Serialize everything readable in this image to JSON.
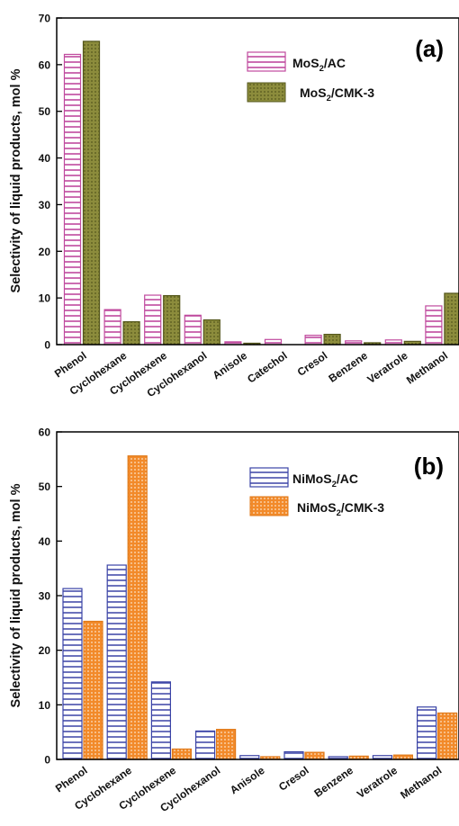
{
  "colors": {
    "mos2_ac": "#c04a9e",
    "mos2_cmk3": "#8c8c3c",
    "mos2_cmk3_dot": "#55571c",
    "nimos2_ac": "#3a43a6",
    "nimos2_cmk3": "#f28a2a",
    "nimos2_cmk3_dot": "#fbe2c6"
  },
  "chart_data": [
    {
      "type": "bar",
      "panel_label": "(a)",
      "ylabel": "Selectivity of liquid products, mol %",
      "ylim": [
        0,
        70
      ],
      "yticks": [
        "0",
        "10",
        "20",
        "30",
        "40",
        "50",
        "60",
        "70"
      ],
      "legend_position": "top-right",
      "categories": [
        "Phenol",
        "Cyclohexane",
        "Cyclohexene",
        "Cyclohexanol",
        "Anisole",
        "Catechol",
        "Cresol",
        "Benzene",
        "Veratrole",
        "Methanol"
      ],
      "series": [
        {
          "legend_main": "MoS",
          "legend_sub": "2",
          "legend_rest": "/AC",
          "pattern": "hlines-magenta",
          "values": [
            62.2,
            7.5,
            10.6,
            6.3,
            0.6,
            1.1,
            2.0,
            0.8,
            1.0,
            8.3
          ]
        },
        {
          "legend_main": "MoS",
          "legend_sub": "2",
          "legend_rest": "/CMK-3",
          "pattern": "dots-olive",
          "values": [
            65.0,
            4.9,
            10.5,
            5.3,
            0.3,
            0.0,
            2.2,
            0.4,
            0.7,
            11.0
          ]
        }
      ]
    },
    {
      "type": "bar",
      "panel_label": "(b)",
      "ylabel": "Selectivity of liquid products, mol %",
      "ylim": [
        0,
        60
      ],
      "yticks": [
        "0",
        "10",
        "20",
        "30",
        "40",
        "50",
        "60"
      ],
      "legend_position": "top-right",
      "categories": [
        "Phenol",
        "Cyclohexane",
        "Cyclohexene",
        "Cyclohexanol",
        "Anisole",
        "Cresol",
        "Benzene",
        "Veratrole",
        "Methanol"
      ],
      "series": [
        {
          "legend_main": "NiMoS",
          "legend_sub": "2",
          "legend_rest": "/AC",
          "pattern": "hlines-blue",
          "values": [
            31.3,
            35.6,
            14.2,
            5.2,
            0.7,
            1.4,
            0.5,
            0.7,
            9.6
          ]
        },
        {
          "legend_main": "NiMoS",
          "legend_sub": "2",
          "legend_rest": "/CMK-3",
          "pattern": "dots-orange",
          "values": [
            25.3,
            55.6,
            1.9,
            5.5,
            0.5,
            1.3,
            0.6,
            0.8,
            8.5
          ]
        }
      ]
    }
  ]
}
